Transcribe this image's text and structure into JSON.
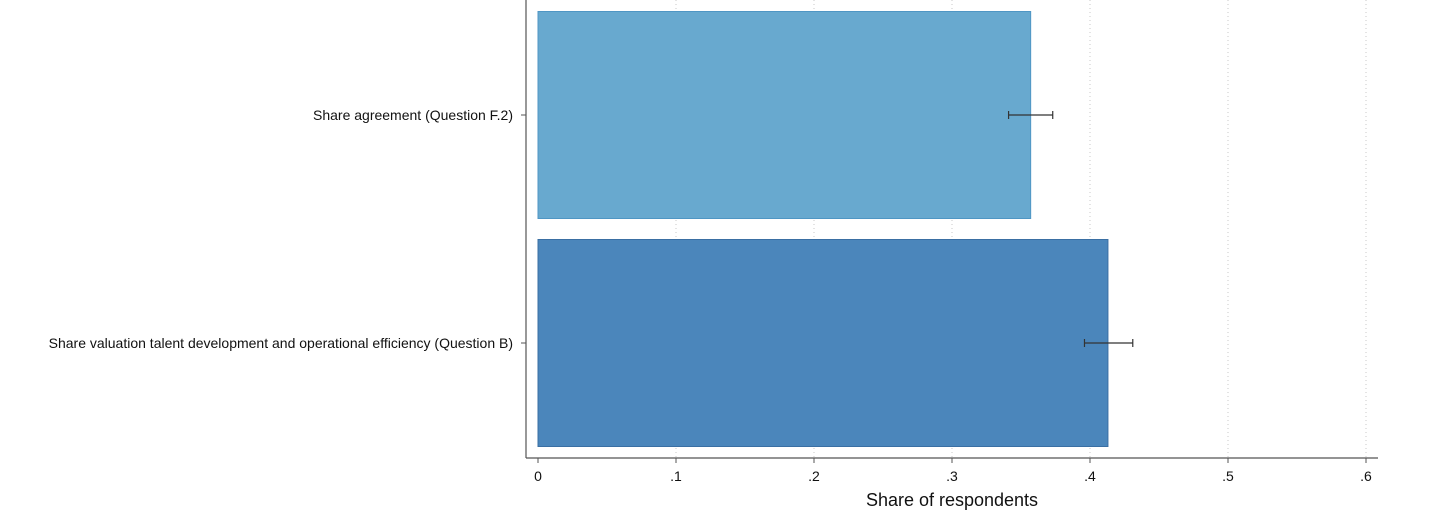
{
  "chart_data": {
    "type": "bar",
    "orientation": "horizontal",
    "categories": [
      "Share agreement (Question F.2)",
      "Share valuation talent development and operational efficiency (Question B)"
    ],
    "values": [
      0.357,
      0.413
    ],
    "error_bars": [
      {
        "low": 0.341,
        "high": 0.373
      },
      {
        "low": 0.396,
        "high": 0.431
      }
    ],
    "colors": [
      "#68a9cf",
      "#4b86bb"
    ],
    "xlabel": "Share of respondents",
    "ylabel": "",
    "xlim": [
      0,
      0.6
    ],
    "x_ticks": [
      {
        "value": 0,
        "label": "0"
      },
      {
        "value": 0.1,
        "label": ".1"
      },
      {
        "value": 0.2,
        "label": ".2"
      },
      {
        "value": 0.3,
        "label": ".3"
      },
      {
        "value": 0.4,
        "label": ".4"
      },
      {
        "value": 0.5,
        "label": ".5"
      },
      {
        "value": 0.6,
        "label": ".6"
      }
    ],
    "grid": "vertical dotted"
  }
}
